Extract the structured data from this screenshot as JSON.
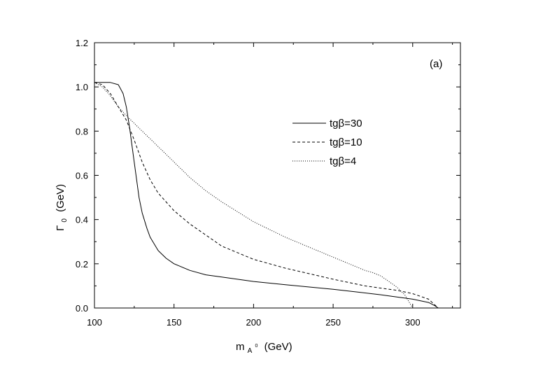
{
  "chart_data": {
    "type": "line",
    "title": "",
    "panel_label": "(a)",
    "xlabel": {
      "main": "m",
      "sub": "A",
      "sup": "0",
      "unit": "(GeV)"
    },
    "ylabel": {
      "main": "Γ",
      "sub": "0",
      "unit": "(GeV)"
    },
    "xlim": [
      100,
      330
    ],
    "ylim": [
      0.0,
      1.2
    ],
    "x_ticks": [
      100,
      150,
      200,
      250,
      300
    ],
    "x_tick_labels": [
      "100",
      "150",
      "200",
      "250",
      "300"
    ],
    "y_ticks": [
      0.0,
      0.2,
      0.4,
      0.6,
      0.8,
      1.0,
      1.2
    ],
    "y_tick_labels": [
      "0.0",
      "0.2",
      "0.4",
      "0.6",
      "0.8",
      "1.0",
      "1.2"
    ],
    "grid": false,
    "legend_position": "upper-right",
    "series": [
      {
        "name": "tgβ=30",
        "line_style": "solid",
        "x": [
          100,
          105,
          110,
          115,
          118,
          120,
          122,
          125,
          128,
          130,
          133,
          135,
          140,
          145,
          150,
          160,
          170,
          180,
          200,
          220,
          250,
          280,
          300,
          310,
          314,
          316
        ],
        "y": [
          1.02,
          1.02,
          1.02,
          1.01,
          0.97,
          0.91,
          0.82,
          0.66,
          0.5,
          0.43,
          0.36,
          0.32,
          0.26,
          0.225,
          0.2,
          0.17,
          0.15,
          0.14,
          0.12,
          0.105,
          0.085,
          0.06,
          0.04,
          0.025,
          0.01,
          0.0
        ]
      },
      {
        "name": "tgβ=10",
        "line_style": "dashed",
        "x": [
          100,
          105,
          110,
          115,
          120,
          125,
          130,
          135,
          140,
          150,
          160,
          170,
          180,
          200,
          220,
          250,
          270,
          280,
          290,
          300,
          310,
          316
        ],
        "y": [
          1.02,
          1.01,
          0.97,
          0.91,
          0.85,
          0.76,
          0.66,
          0.58,
          0.52,
          0.44,
          0.38,
          0.33,
          0.28,
          0.22,
          0.18,
          0.13,
          0.1,
          0.09,
          0.08,
          0.065,
          0.04,
          0.0
        ]
      },
      {
        "name": "tgβ=4",
        "line_style": "dotted",
        "x": [
          100,
          105,
          110,
          115,
          120,
          130,
          140,
          150,
          160,
          170,
          180,
          200,
          220,
          240,
          260,
          270,
          275,
          280,
          285,
          290,
          295,
          300
        ],
        "y": [
          1.02,
          1.0,
          0.96,
          0.91,
          0.87,
          0.8,
          0.73,
          0.66,
          0.59,
          0.53,
          0.48,
          0.39,
          0.32,
          0.26,
          0.2,
          0.17,
          0.16,
          0.145,
          0.12,
          0.095,
          0.06,
          0.0
        ]
      }
    ]
  }
}
